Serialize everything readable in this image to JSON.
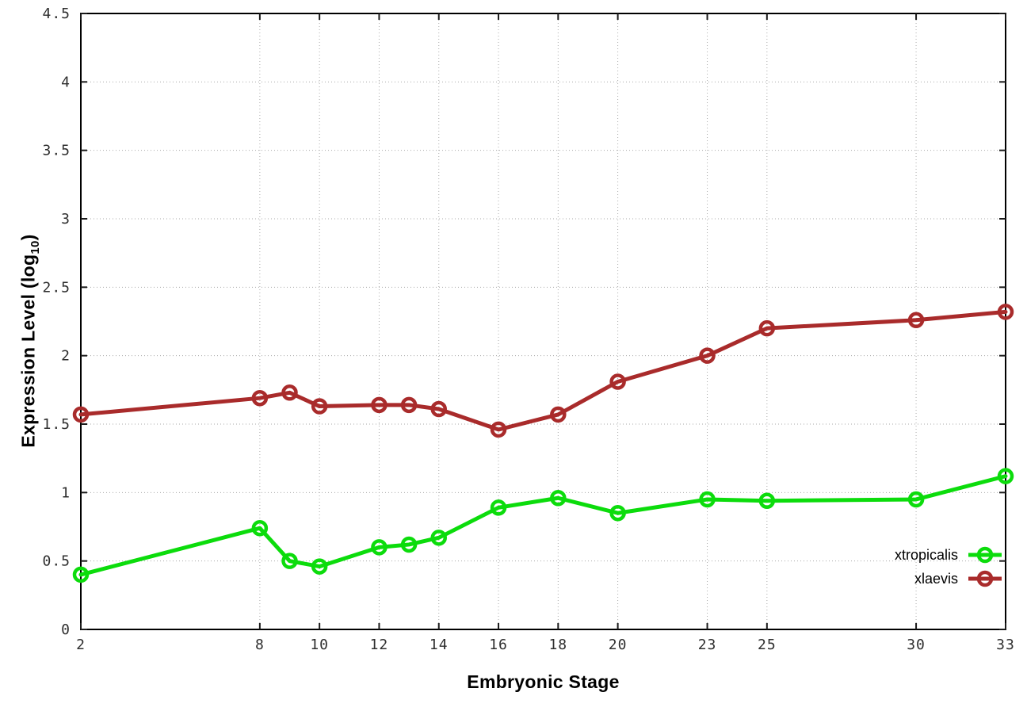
{
  "chart_data": {
    "type": "line",
    "title": "",
    "xlabel": "Embryonic Stage",
    "ylabel": "Expression Level (log10)",
    "ylabel_parts": {
      "prefix": "Expression Level (log",
      "sub": "10",
      "suffix": ")"
    },
    "xlim": [
      2,
      33
    ],
    "ylim": [
      0,
      4.5
    ],
    "grid": true,
    "grid_style": "dotted",
    "legend_position": "bottom-right-inside",
    "x_ticks": [
      2,
      8,
      10,
      12,
      14,
      16,
      18,
      20,
      23,
      25,
      30,
      33
    ],
    "x_tick_labels": [
      "2",
      "8",
      "10",
      "12",
      "14",
      "16",
      "18",
      "20",
      "23",
      "25",
      "30",
      "33"
    ],
    "y_ticks": [
      0,
      0.5,
      1,
      1.5,
      2,
      2.5,
      3,
      3.5,
      4,
      4.5
    ],
    "y_tick_labels": [
      "0",
      "0.5",
      "1",
      "1.5",
      "2",
      "2.5",
      "3",
      "3.5",
      "4",
      "4.5"
    ],
    "x": [
      2,
      8,
      9,
      10,
      12,
      13,
      14,
      16,
      18,
      20,
      23,
      25,
      30,
      33
    ],
    "series": [
      {
        "name": "xtropicalis",
        "color": "#0cdc0c",
        "marker": "open-circle",
        "values": [
          0.4,
          0.74,
          0.5,
          0.46,
          0.6,
          0.62,
          0.67,
          0.89,
          0.96,
          0.85,
          0.95,
          0.94,
          0.95,
          1.12
        ]
      },
      {
        "name": "xlaevis",
        "color": "#a92b2b",
        "marker": "open-circle",
        "values": [
          1.57,
          1.69,
          1.73,
          1.63,
          1.64,
          1.64,
          1.61,
          1.46,
          1.57,
          1.81,
          2.0,
          2.2,
          2.26,
          2.32
        ]
      }
    ]
  }
}
